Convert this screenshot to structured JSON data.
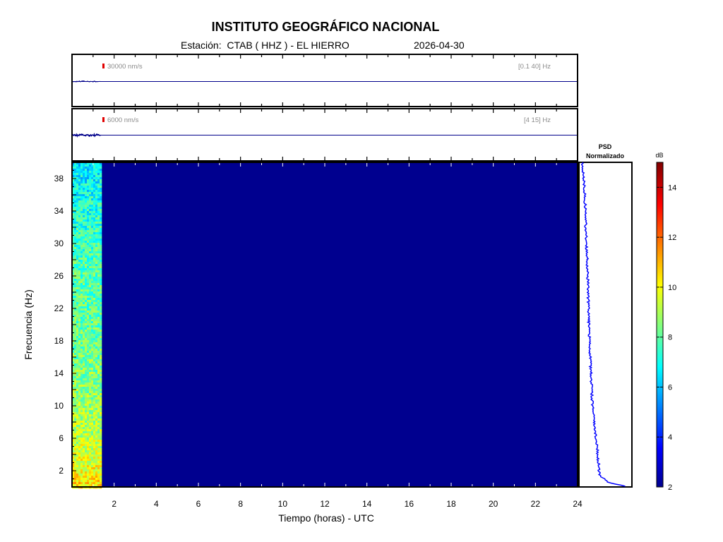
{
  "header": {
    "title": "INSTITUTO GEOGRÁFICO NACIONAL",
    "station": "Estación:  CTAB ( HHZ ) - EL HIERRO",
    "date": "2026-04-30"
  },
  "chart_data": [
    {
      "type": "line",
      "title": "",
      "amplitude_scale": "30000 nm/s",
      "filter": "[0.1 40] Hz",
      "xlim": [
        0,
        24
      ],
      "signal_hours": [
        0,
        1.4
      ],
      "color": "#00008b"
    },
    {
      "type": "line",
      "title": "",
      "amplitude_scale": "6000 nm/s",
      "filter": "[4 15] Hz",
      "xlim": [
        0,
        24
      ],
      "signal_hours": [
        0,
        1.4
      ],
      "color": "#00008b"
    },
    {
      "type": "heatmap",
      "xlabel": "Tiempo (horas) - UTC",
      "ylabel": "Frecuencia  (Hz)",
      "xlim": [
        0,
        24
      ],
      "ylim": [
        0,
        40
      ],
      "xticks": [
        2,
        4,
        6,
        8,
        10,
        12,
        14,
        16,
        18,
        20,
        22,
        24
      ],
      "yticks": [
        2,
        6,
        10,
        14,
        18,
        22,
        26,
        30,
        34,
        38
      ],
      "data_hours": [
        0,
        1.4
      ],
      "background_db": 2,
      "freq_profile_db": [
        {
          "f": 0,
          "db": 10.5
        },
        {
          "f": 4,
          "db": 9.6
        },
        {
          "f": 10,
          "db": 8.8
        },
        {
          "f": 18,
          "db": 8.2
        },
        {
          "f": 26,
          "db": 8.0
        },
        {
          "f": 34,
          "db": 7.3
        },
        {
          "f": 40,
          "db": 6.5
        }
      ]
    },
    {
      "type": "line",
      "title": "PSD\nNormalizado",
      "title_lines": [
        "PSD",
        "Normalizado"
      ],
      "color": "#0000ff",
      "profile": [
        {
          "f": 0,
          "v": 0.95
        },
        {
          "f": 0.6,
          "v": 0.55
        },
        {
          "f": 1.5,
          "v": 0.38
        },
        {
          "f": 3,
          "v": 0.36
        },
        {
          "f": 5,
          "v": 0.33
        },
        {
          "f": 7,
          "v": 0.29
        },
        {
          "f": 10,
          "v": 0.24
        },
        {
          "f": 14,
          "v": 0.21
        },
        {
          "f": 18,
          "v": 0.18
        },
        {
          "f": 22,
          "v": 0.16
        },
        {
          "f": 26,
          "v": 0.15
        },
        {
          "f": 30,
          "v": 0.12
        },
        {
          "f": 34,
          "v": 0.1
        },
        {
          "f": 38,
          "v": 0.07
        },
        {
          "f": 40,
          "v": 0.04
        }
      ]
    },
    {
      "type": "heatmap",
      "title": "dB",
      "colorbar_range": [
        2,
        15
      ],
      "ticks": [
        2,
        4,
        6,
        8,
        10,
        12,
        14
      ]
    }
  ]
}
